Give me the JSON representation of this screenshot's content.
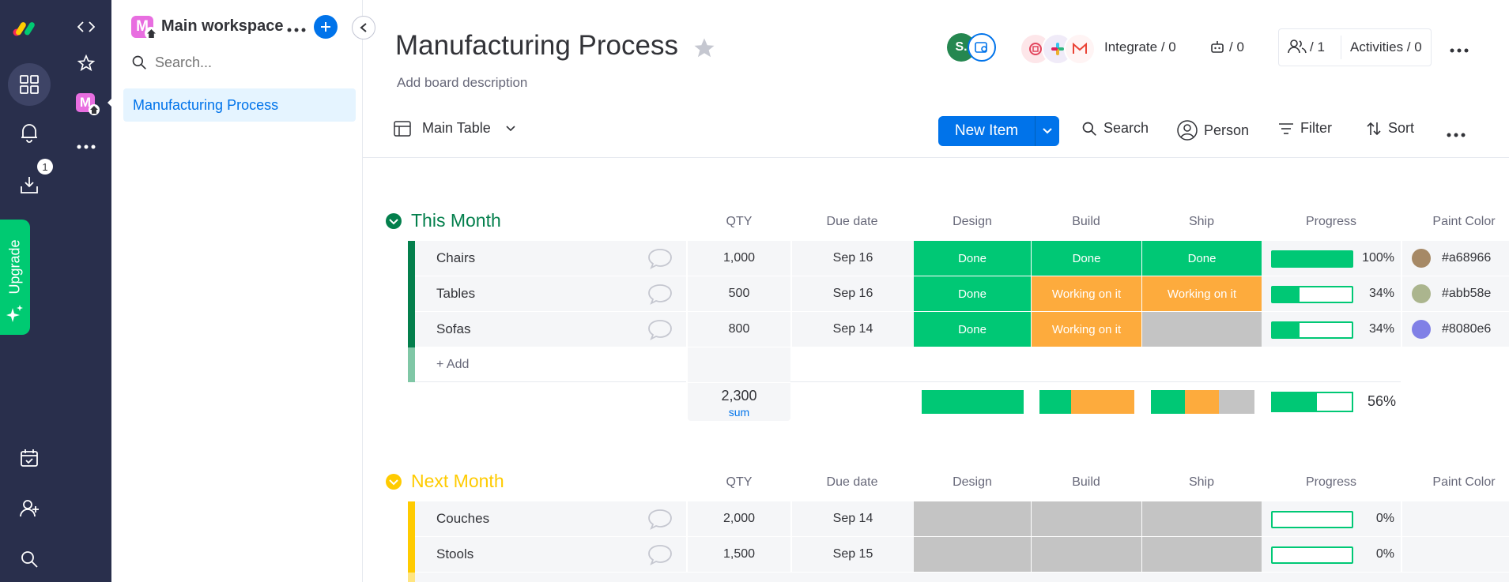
{
  "nav": {
    "download_badge": "1",
    "upgrade_label": "Upgrade"
  },
  "workspace": {
    "avatar_letter": "M",
    "title": "Main workspace",
    "search_placeholder": "Search...",
    "boards": [
      "Manufacturing Process"
    ]
  },
  "board": {
    "title": "Manufacturing Process",
    "description": "Add board description",
    "user_avatar": "S.",
    "integrate": "Integrate / 0",
    "automations": "/ 0",
    "members": "/ 1",
    "activities": "Activities / 0"
  },
  "toolbar": {
    "view": "Main Table",
    "new_item": "New Item",
    "search": "Search",
    "person": "Person",
    "filter": "Filter",
    "sort": "Sort"
  },
  "columns": [
    "QTY",
    "Due date",
    "Design",
    "Build",
    "Ship",
    "Progress",
    "Paint Color"
  ],
  "colors": {
    "done": "#00c875",
    "working": "#fdab3d",
    "empty": "#c4c4c4",
    "group_this": "#037f4c",
    "group_next": "#ffcb00"
  },
  "groups": [
    {
      "title": "This Month",
      "color": "#037f4c",
      "title_color": "#037f4c",
      "rows": [
        {
          "name": "Chairs",
          "qty": "1,000",
          "due": "Sep 16",
          "design": "Done",
          "build": "Done",
          "ship": "Done",
          "progress": 100,
          "progress_label": "100%",
          "paint": "#a68966"
        },
        {
          "name": "Tables",
          "qty": "500",
          "due": "Sep 16",
          "design": "Done",
          "build": "Working on it",
          "ship": "Working on it",
          "progress": 34,
          "progress_label": "34%",
          "paint": "#abb58e"
        },
        {
          "name": "Sofas",
          "qty": "800",
          "due": "Sep 14",
          "design": "Done",
          "build": "Working on it",
          "ship": "",
          "progress": 34,
          "progress_label": "34%",
          "paint": "#8080e6"
        }
      ],
      "add_label": "+ Add",
      "summary": {
        "qty_sum": "2,300",
        "qty_sum_label": "sum",
        "progress": 56,
        "progress_label": "56%"
      }
    },
    {
      "title": "Next Month",
      "color": "#ffcb00",
      "title_color": "#ffcb00",
      "rows": [
        {
          "name": "Couches",
          "qty": "2,000",
          "due": "Sep 14",
          "design": "",
          "build": "",
          "ship": "",
          "progress": 0,
          "progress_label": "0%",
          "paint": ""
        },
        {
          "name": "Stools",
          "qty": "1,500",
          "due": "Sep 15",
          "design": "",
          "build": "",
          "ship": "",
          "progress": 0,
          "progress_label": "0%",
          "paint": ""
        }
      ]
    }
  ]
}
